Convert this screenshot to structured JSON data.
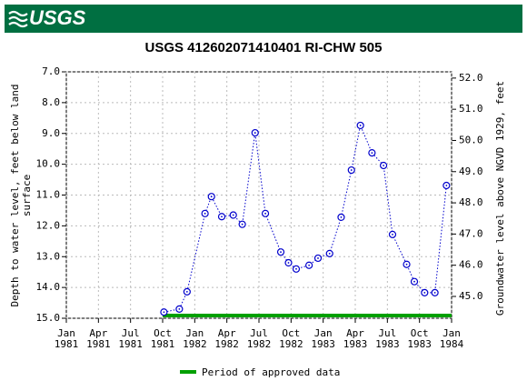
{
  "header": {
    "logo": "USGS"
  },
  "chart_data": {
    "type": "line",
    "title": "USGS 412602071410401 RI-CHW  505",
    "y_label": [
      "Depth to water level, feet below land",
      "surface"
    ],
    "y2_label": "Groundwater level above NGVD 1929, feet",
    "x": [
      1981.76,
      1981.88,
      1981.94,
      1982.08,
      1982.13,
      1982.21,
      1982.3,
      1982.37,
      1982.47,
      1982.55,
      1982.67,
      1982.73,
      1982.79,
      1982.89,
      1982.96,
      1983.05,
      1983.14,
      1983.22,
      1983.29,
      1983.38,
      1983.47,
      1983.54,
      1983.65,
      1983.71,
      1983.79,
      1983.87,
      1983.96
    ],
    "series": [
      {
        "color": "#0000cc",
        "values": [
          14.8,
          14.7,
          14.14,
          11.6,
          11.05,
          11.7,
          11.65,
          11.95,
          8.98,
          11.6,
          12.85,
          13.2,
          13.4,
          13.28,
          13.05,
          12.9,
          11.72,
          10.19,
          8.74,
          9.63,
          10.04,
          12.28,
          13.25,
          13.81,
          14.17,
          14.17,
          10.69
        ]
      }
    ],
    "xlim": [
      1981.0,
      1984.0
    ],
    "xticks": [
      {
        "value": 1981.0,
        "label": "Jan 1981"
      },
      {
        "value": 1981.25,
        "label": "Apr 1981"
      },
      {
        "value": 1981.5,
        "label": "Jul 1981"
      },
      {
        "value": 1981.75,
        "label": "Oct 1981"
      },
      {
        "value": 1982.0,
        "label": "Jan 1982"
      },
      {
        "value": 1982.25,
        "label": "Apr 1982"
      },
      {
        "value": 1982.5,
        "label": "Jul 1982"
      },
      {
        "value": 1982.75,
        "label": "Oct 1982"
      },
      {
        "value": 1983.0,
        "label": "Jan 1983"
      },
      {
        "value": 1983.25,
        "label": "Apr 1983"
      },
      {
        "value": 1983.5,
        "label": "Jul 1983"
      },
      {
        "value": 1983.75,
        "label": "Oct 1983"
      },
      {
        "value": 1984.0,
        "label": "Jan 1984"
      }
    ],
    "ylim": [
      7,
      15
    ],
    "y_inverted": true,
    "yticks": [
      {
        "value": 7,
        "label": "7.0"
      },
      {
        "value": 8,
        "label": "8.0"
      },
      {
        "value": 9,
        "label": "9.0"
      },
      {
        "value": 10,
        "label": "10.0"
      },
      {
        "value": 11,
        "label": "11.0"
      },
      {
        "value": 12,
        "label": "12.0"
      },
      {
        "value": 13,
        "label": "13.0"
      },
      {
        "value": 14,
        "label": "14.0"
      },
      {
        "value": 15,
        "label": "15.0"
      }
    ],
    "y2lim": [
      44.3,
      52.2
    ],
    "y2ticks": [
      {
        "value": 45,
        "label": "45.0"
      },
      {
        "value": 46,
        "label": "46.0"
      },
      {
        "value": 47,
        "label": "47.0"
      },
      {
        "value": 48,
        "label": "48.0"
      },
      {
        "value": 49,
        "label": "49.0"
      },
      {
        "value": 50,
        "label": "50.0"
      },
      {
        "value": 51,
        "label": "51.0"
      },
      {
        "value": 52,
        "label": "52.0"
      }
    ],
    "grid": true,
    "approved_period": {
      "label": "Period of approved data",
      "start": 1981.75,
      "end": 1984.0,
      "color": "#00a000"
    }
  }
}
